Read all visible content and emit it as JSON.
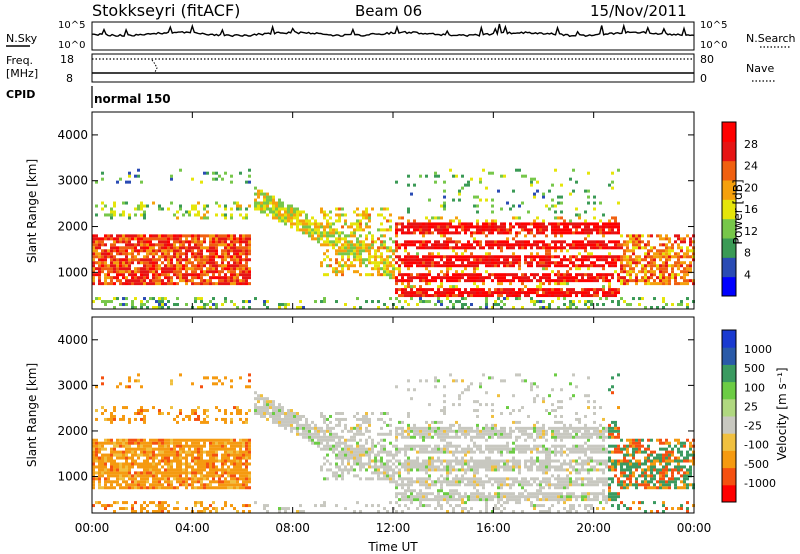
{
  "header": {
    "station": "Stokkseyri (fitACF)",
    "beam": "Beam 06",
    "date": "15/Nov/2011"
  },
  "noise_panel": {
    "left_label": "N.Sky",
    "right_label": "N.Search",
    "left_ticks": [
      "10^5",
      "10^0"
    ],
    "right_ticks": [
      "10^5",
      "10^0"
    ]
  },
  "freq_panel": {
    "left_label_1": "Freq.",
    "left_label_2": "[MHz]",
    "left_ticks": [
      "18",
      "8"
    ],
    "right_label": "Nave",
    "right_ticks": [
      "80",
      "0"
    ]
  },
  "cpid_panel": {
    "label": "CPID",
    "mode": "normal 150"
  },
  "x_axis": {
    "label": "Time UT",
    "ticks": [
      "00:00",
      "04:00",
      "08:00",
      "12:00",
      "16:00",
      "20:00",
      "00:00"
    ]
  },
  "colors": {
    "power": [
      "#0000ff",
      "#2a4bb4",
      "#3a9a55",
      "#77c74a",
      "#e5e50a",
      "#f5a00c",
      "#f06010",
      "#e61414",
      "#ff0000"
    ],
    "velocity": [
      "#ff0000",
      "#f55010",
      "#f59a10",
      "#f0c040",
      "#c8c8c0",
      "#b0d880",
      "#6ccc44",
      "#3a9a60",
      "#2a5aa8",
      "#1a3ad0"
    ]
  },
  "chart_data": [
    {
      "type": "heatmap",
      "title": "",
      "ylabel": "Slant Range [km]",
      "y_ticks": [
        "1000",
        "2000",
        "3000",
        "4000"
      ],
      "ylim": [
        200,
        4500
      ],
      "xlim_hours": [
        0,
        24
      ],
      "colorbar_label": "Power [dB]",
      "colorbar_ticks": [
        "28",
        "24",
        "20",
        "16",
        "12",
        "8",
        "4"
      ],
      "colorbar_range": [
        0,
        30
      ]
    },
    {
      "type": "heatmap",
      "title": "",
      "ylabel": "Slant Range [km]",
      "y_ticks": [
        "1000",
        "2000",
        "3000",
        "4000"
      ],
      "ylim": [
        200,
        4500
      ],
      "xlim_hours": [
        0,
        24
      ],
      "colorbar_label": "Velocity [m s⁻¹]",
      "colorbar_ticks": [
        "1000",
        "500",
        "100",
        "25",
        "-25",
        "-100",
        "-500",
        "-1000"
      ]
    }
  ]
}
